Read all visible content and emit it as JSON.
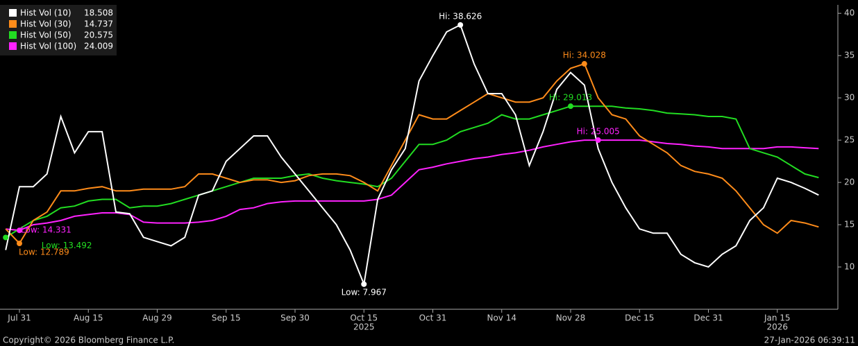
{
  "chart_data": {
    "type": "line",
    "categories": [
      null,
      "Jul 31",
      null,
      null,
      null,
      null,
      "Aug 15",
      null,
      null,
      null,
      null,
      "Aug 29",
      null,
      null,
      null,
      null,
      "Sep 15",
      null,
      null,
      null,
      null,
      "Sep 30",
      null,
      null,
      null,
      null,
      "Oct 15",
      null,
      null,
      null,
      null,
      "Oct 31",
      null,
      null,
      null,
      null,
      "Nov 14",
      null,
      null,
      null,
      null,
      "Nov 28",
      null,
      null,
      null,
      null,
      "Dec 15",
      null,
      null,
      null,
      null,
      "Dec 31",
      null,
      null,
      null,
      null,
      "Jan 15",
      null,
      null,
      null
    ],
    "x_sublabels": [
      null,
      null,
      null,
      null,
      null,
      null,
      null,
      null,
      null,
      null,
      null,
      null,
      null,
      null,
      null,
      null,
      null,
      null,
      null,
      null,
      null,
      null,
      null,
      null,
      null,
      null,
      "2025",
      null,
      null,
      null,
      null,
      null,
      null,
      null,
      null,
      null,
      null,
      null,
      null,
      null,
      null,
      null,
      null,
      null,
      null,
      null,
      null,
      null,
      null,
      null,
      null,
      null,
      null,
      null,
      null,
      null,
      "2026",
      null,
      null,
      null
    ],
    "ylim": [
      5,
      41
    ],
    "yticks": [
      10,
      15,
      20,
      25,
      30,
      35,
      40
    ],
    "series": [
      {
        "name": "Hist Vol (10)",
        "color": "#ffffff",
        "values": [
          12,
          19.5,
          19.5,
          21,
          27.8,
          23.5,
          26,
          26,
          16.5,
          16.3,
          13.5,
          13,
          12.5,
          13.5,
          18.5,
          19,
          22.5,
          24,
          25.5,
          25.5,
          23,
          21,
          19,
          17,
          15,
          12,
          7.967,
          18,
          21.5,
          24,
          32,
          35,
          37.8,
          38.626,
          34,
          30.5,
          30.5,
          28,
          22,
          26,
          31,
          33,
          31.5,
          24,
          20,
          17,
          14.5,
          14,
          14,
          11.5,
          10.5,
          10,
          11.5,
          12.5,
          15.5,
          17,
          20.5,
          20,
          19.3,
          18.508
        ],
        "value_labels": [
          null,
          null,
          null,
          null,
          null,
          null,
          null,
          null,
          null,
          null,
          null,
          null,
          null,
          null,
          null,
          null,
          null,
          null,
          null,
          null,
          null,
          null,
          null,
          null,
          null,
          null,
          "Low: 7.967",
          null,
          null,
          null,
          null,
          null,
          null,
          "Hi: 38.626",
          null,
          null,
          null,
          null,
          null,
          null,
          null,
          null,
          null,
          null,
          null,
          null,
          null,
          null,
          null,
          null,
          null,
          null,
          null,
          null,
          null,
          null,
          null,
          null,
          null,
          null
        ]
      },
      {
        "name": "Hist Vol (30)",
        "color": "#ff8c1a",
        "values": [
          14.5,
          12.789,
          15.5,
          16.5,
          19,
          19,
          19.3,
          19.5,
          19,
          19,
          19.2,
          19.2,
          19.2,
          19.5,
          21,
          21,
          20.5,
          20,
          20.3,
          20.3,
          20,
          20.2,
          20.8,
          21,
          21,
          20.8,
          20,
          19,
          22,
          25,
          28,
          27.5,
          27.5,
          28.5,
          29.5,
          30.5,
          30,
          29.5,
          29.5,
          30,
          32,
          33.5,
          34.028,
          30,
          28,
          27.5,
          25.5,
          24.5,
          23.5,
          22,
          21.3,
          21,
          20.5,
          19,
          17,
          15,
          14,
          15.5,
          15.2,
          14.737
        ],
        "value_labels": [
          null,
          "Low: 12.789",
          null,
          null,
          null,
          null,
          null,
          null,
          null,
          null,
          null,
          null,
          null,
          null,
          null,
          null,
          null,
          null,
          null,
          null,
          null,
          null,
          null,
          null,
          null,
          null,
          null,
          null,
          null,
          null,
          null,
          null,
          null,
          null,
          null,
          null,
          null,
          null,
          null,
          null,
          null,
          null,
          "Hi: 34.028",
          null,
          null,
          null,
          null,
          null,
          null,
          null,
          null,
          null,
          null,
          null,
          null,
          null,
          null,
          null,
          null,
          null
        ]
      },
      {
        "name": "Hist Vol (50)",
        "color": "#22dd22",
        "values": [
          13.492,
          14.5,
          15.5,
          16,
          17,
          17.2,
          17.8,
          18,
          18,
          17,
          17.2,
          17.2,
          17.5,
          18,
          18.5,
          19,
          19.5,
          20,
          20.5,
          20.5,
          20.5,
          20.8,
          21,
          20.5,
          20.2,
          20,
          19.8,
          19.5,
          20.5,
          22.5,
          24.5,
          24.5,
          25,
          26,
          26.5,
          27,
          28,
          27.5,
          27.5,
          28,
          28.5,
          29.013,
          29,
          29,
          29,
          28.8,
          28.7,
          28.5,
          28.2,
          28.1,
          28,
          27.8,
          27.8,
          27.5,
          24,
          23.5,
          23,
          22,
          21,
          20.575
        ],
        "value_labels": [
          "Low: 13.492",
          null,
          null,
          null,
          null,
          null,
          null,
          null,
          null,
          null,
          null,
          null,
          null,
          null,
          null,
          null,
          null,
          null,
          null,
          null,
          null,
          null,
          null,
          null,
          null,
          null,
          null,
          null,
          null,
          null,
          null,
          null,
          null,
          null,
          null,
          null,
          null,
          null,
          null,
          null,
          null,
          "Hi: 29.013",
          null,
          null,
          null,
          null,
          null,
          null,
          null,
          null,
          null,
          null,
          null,
          null,
          null,
          null,
          null,
          null,
          null,
          null
        ]
      },
      {
        "name": "Hist Vol (100)",
        "color": "#ff22ff",
        "values": [
          14.5,
          14.331,
          15,
          15.2,
          15.5,
          16,
          16.2,
          16.4,
          16.4,
          16.2,
          15.3,
          15.2,
          15.2,
          15.2,
          15.3,
          15.5,
          16,
          16.8,
          17,
          17.5,
          17.7,
          17.8,
          17.8,
          17.8,
          17.8,
          17.8,
          17.8,
          18,
          18.5,
          20,
          21.5,
          21.8,
          22.2,
          22.5,
          22.8,
          23,
          23.3,
          23.5,
          23.8,
          24.2,
          24.5,
          24.8,
          25,
          25.005,
          25,
          25,
          25,
          24.8,
          24.6,
          24.5,
          24.3,
          24.2,
          24,
          24,
          24,
          24,
          24.2,
          24.2,
          24.1,
          24.009
        ],
        "value_labels": [
          null,
          "Low: 14.331",
          null,
          null,
          null,
          null,
          null,
          null,
          null,
          null,
          null,
          null,
          null,
          null,
          null,
          null,
          null,
          null,
          null,
          null,
          null,
          null,
          null,
          null,
          null,
          null,
          null,
          null,
          null,
          null,
          null,
          null,
          null,
          null,
          null,
          null,
          null,
          null,
          null,
          null,
          null,
          null,
          null,
          "Hi: 25.005",
          null,
          null,
          null,
          null,
          null,
          null,
          null,
          null,
          null,
          null,
          null,
          null,
          null,
          null,
          null,
          null
        ]
      }
    ],
    "copyright": "Copyright© 2026 Bloomberg Finance L.P.",
    "timestamp": "27-Jan-2026 06:39:11"
  }
}
